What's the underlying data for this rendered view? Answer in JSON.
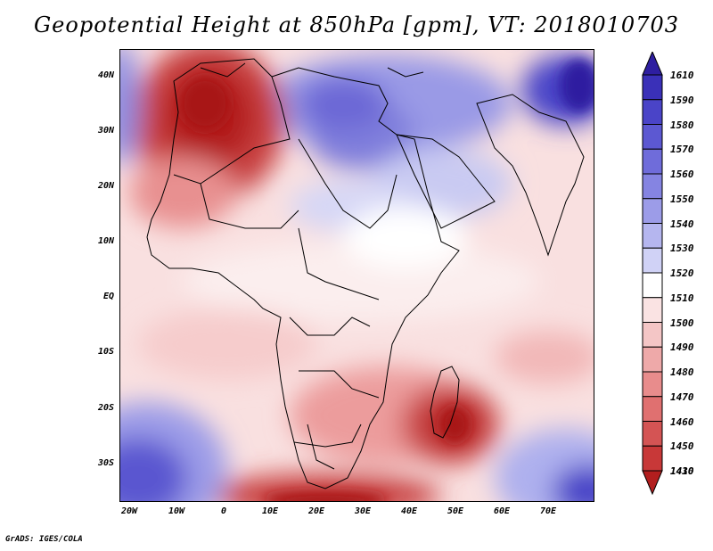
{
  "title": "Geopotential Height at 850hPa [gpm], VT: 2018010703",
  "credit": "GrADS: IGES/COLA",
  "lat_labels": [
    "40N",
    "30N",
    "20N",
    "10N",
    "EQ",
    "10S",
    "20S",
    "30S"
  ],
  "lon_labels": [
    "20W",
    "10W",
    "0",
    "10E",
    "20E",
    "30E",
    "40E",
    "50E",
    "60E",
    "70E"
  ],
  "colorbar": {
    "levels": [
      "1610",
      "1590",
      "1580",
      "1570",
      "1560",
      "1550",
      "1540",
      "1530",
      "1520",
      "1510",
      "1500",
      "1490",
      "1480",
      "1470",
      "1460",
      "1450",
      "1430",
      "1410"
    ],
    "colors": [
      "#2e1ea0",
      "#3a30b8",
      "#4a44c8",
      "#5c58d2",
      "#6f6cda",
      "#8584e2",
      "#9c9ce8",
      "#b5b6ef",
      "#d0d2f6",
      "#ffffff",
      "#fae3e3",
      "#f4c6c6",
      "#eea9a9",
      "#e88c8c",
      "#e07070",
      "#d45454",
      "#c83838",
      "#b21e1e"
    ]
  },
  "colors": {
    "high": "#4a44c8",
    "low": "#b21e1e",
    "neutral": "#ffffff"
  }
}
